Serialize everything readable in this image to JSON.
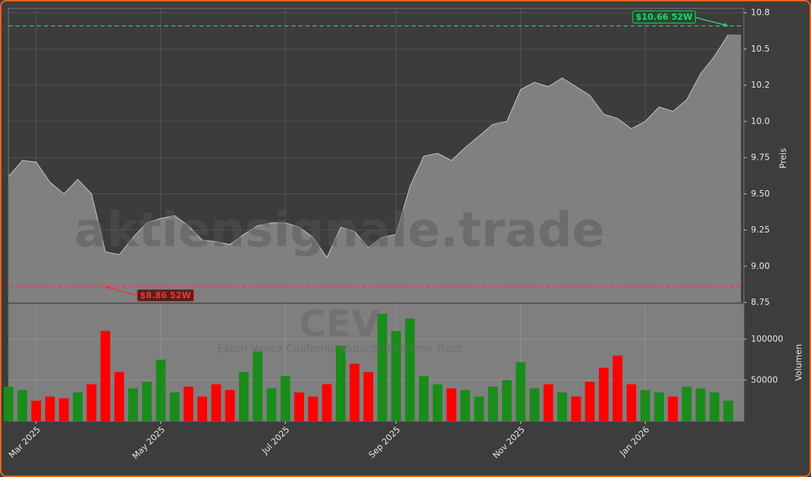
{
  "chart_data": {
    "type": "area",
    "watermark": "aktiensignale.trade",
    "symbol": "CEV",
    "description": "Eaton Vance California Municipal Income Trust",
    "ylabel": "Preis",
    "y2label": "Volumen",
    "categories": [
      null,
      null,
      "Mar 2025",
      null,
      null,
      null,
      null,
      null,
      null,
      null,
      null,
      "May 2025",
      null,
      null,
      null,
      null,
      null,
      null,
      null,
      null,
      "Jul 2025",
      null,
      null,
      null,
      null,
      null,
      null,
      null,
      "Sep 2025",
      null,
      null,
      null,
      null,
      null,
      null,
      null,
      null,
      "Nov 2025",
      null,
      null,
      null,
      null,
      null,
      null,
      null,
      null,
      "Jan 2026",
      null,
      null,
      null,
      null,
      null,
      null
    ],
    "series": [
      {
        "name": "Preis",
        "color": "#808080",
        "line_color": "#c8c8c8",
        "values": [
          9.62,
          9.73,
          9.72,
          9.58,
          9.5,
          9.6,
          9.5,
          9.1,
          9.08,
          9.2,
          9.3,
          9.33,
          9.35,
          9.28,
          9.18,
          9.17,
          9.15,
          9.22,
          9.28,
          9.3,
          9.3,
          9.27,
          9.2,
          9.06,
          9.27,
          9.24,
          9.13,
          9.2,
          9.22,
          9.55,
          9.76,
          9.78,
          9.73,
          9.82,
          9.9,
          9.98,
          10.0,
          10.22,
          10.27,
          10.24,
          10.3,
          10.24,
          10.18,
          10.05,
          10.02,
          9.95,
          10.0,
          10.1,
          10.07,
          10.15,
          10.33,
          10.45,
          10.6
        ]
      },
      {
        "name": "Volumen",
        "axis": "y2",
        "up_color": "#1a8c1a",
        "down_color": "#ff0000",
        "values": [
          42000,
          38000,
          25000,
          30000,
          28000,
          35000,
          45000,
          110000,
          60000,
          40000,
          48000,
          75000,
          35000,
          42000,
          30000,
          45000,
          38000,
          60000,
          85000,
          40000,
          55000,
          35000,
          30000,
          45000,
          92000,
          70000,
          60000,
          131000,
          110000,
          125000,
          55000,
          45000,
          40000,
          38000,
          30000,
          42000,
          50000,
          72000,
          40000,
          45000,
          35000,
          30000,
          48000,
          65000,
          80000,
          45000,
          38000,
          35000,
          30000,
          42000,
          40000,
          35000,
          25000
        ]
      }
    ],
    "high": {
      "value": 10.66,
      "label": "$10.66 52W",
      "index": 52,
      "color": "#2ecc71"
    },
    "low": {
      "value": 8.86,
      "label": "$8.86 52W",
      "index": 7,
      "color": "#e53935"
    },
    "ylim": [
      8.75,
      10.78
    ],
    "yticks": [
      {
        "value": 8.75,
        "label": "8.75"
      },
      {
        "value": 9.0,
        "label": "9.00"
      },
      9.25,
      {
        "value": 9.5,
        "label": "9.50"
      },
      9.75,
      {
        "value": 10.0,
        "label": "10.0"
      },
      {
        "value": 10.25,
        "label": "10.2"
      },
      10.5,
      {
        "value": 10.75,
        "label": "10.8"
      }
    ],
    "y2lim": [
      0,
      143000
    ],
    "y2ticks": [
      50000,
      100000
    ],
    "grid": true
  }
}
